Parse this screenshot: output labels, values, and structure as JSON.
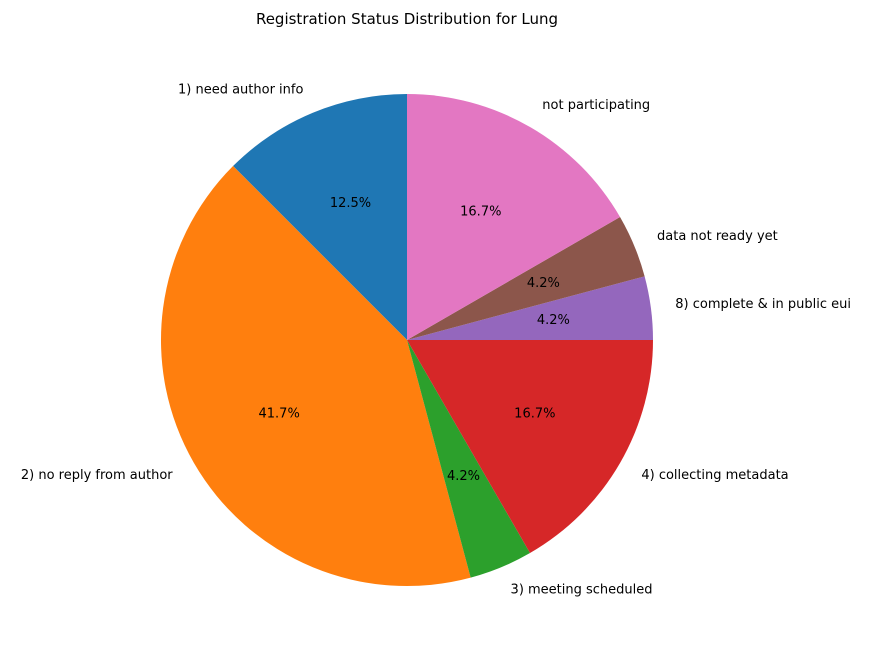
{
  "chart_data": {
    "type": "pie",
    "title": "Registration Status Distribution for Lung",
    "start_angle_deg": 90,
    "direction": "counterclockwise",
    "slices": [
      {
        "label": "1) need author info",
        "value": 3,
        "percent_label": "12.5%",
        "color": "#1f77b4"
      },
      {
        "label": "2) no reply from author",
        "value": 10,
        "percent_label": "41.7%",
        "color": "#ff7f0e"
      },
      {
        "label": "3) meeting scheduled",
        "value": 1,
        "percent_label": "4.2%",
        "color": "#2ca02c"
      },
      {
        "label": "4) collecting metadata",
        "value": 4,
        "percent_label": "16.7%",
        "color": "#d62728"
      },
      {
        "label": "8) complete & in public eui",
        "value": 1,
        "percent_label": "4.2%",
        "color": "#9467bd"
      },
      {
        "label": "data not ready yet",
        "value": 1,
        "percent_label": "4.2%",
        "color": "#8c564b"
      },
      {
        "label": "not participating",
        "value": 4,
        "percent_label": "16.7%",
        "color": "#e377c2"
      }
    ]
  }
}
